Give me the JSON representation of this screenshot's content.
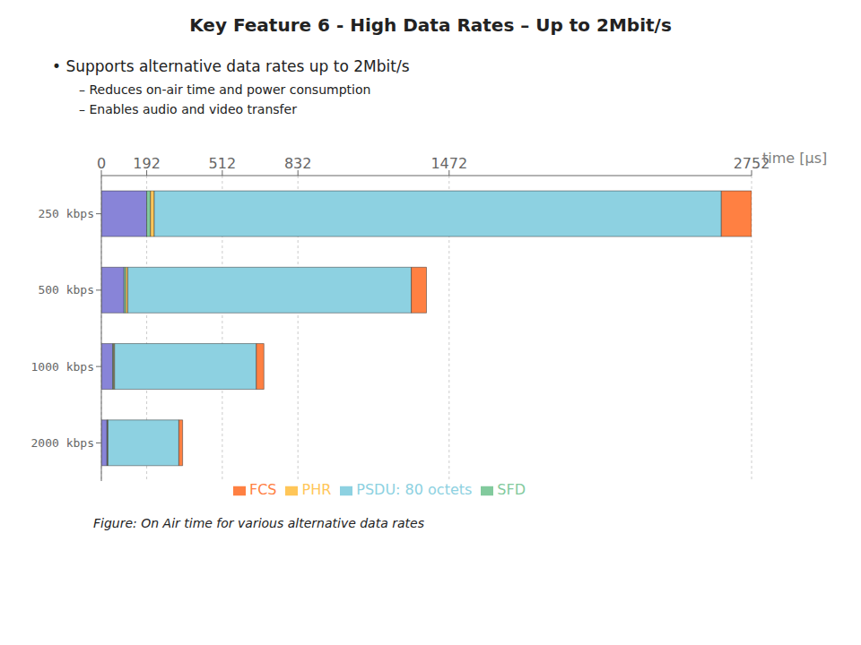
{
  "chart_data": {
    "type": "bar",
    "orientation": "horizontal",
    "stacked": true,
    "title": "Key Feature 6 - High Data Rates – Up to 2Mbit/s",
    "subtitle": "• Supports alternative data rates up to 2Mbit/s",
    "annotations": [
      "– Reduces on-air time and power consumption",
      "– Enables audio and video transfer",
      "Figure: On Air time for various alternative data rates"
    ],
    "xlabel": "time [µs]",
    "categories": [
      "250 kbps",
      "500 kbps",
      "1000 kbps",
      "2000 kbps"
    ],
    "series": [
      {
        "color": "#8884d8",
        "values": [
          192,
          96,
          48,
          24
        ]
      },
      {
        "name": "SFD",
        "color": "#82ca9d",
        "values": [
          16,
          8,
          4,
          2
        ]
      },
      {
        "name": "PHR",
        "color": "#ffc658",
        "values": [
          16,
          8,
          4,
          2
        ]
      },
      {
        "name": "PSDU: 80 octets",
        "color": "#8dd1e1",
        "values": [
          2400,
          1200,
          600,
          300
        ]
      },
      {
        "name": "FCS",
        "color": "#ff8042",
        "values": [
          128,
          64,
          32,
          16
        ]
      }
    ],
    "xlim": [
      0,
      2752
    ],
    "xticks": [
      0,
      192,
      512,
      832,
      1472,
      2752
    ],
    "grid": true,
    "legend": "bottom"
  }
}
